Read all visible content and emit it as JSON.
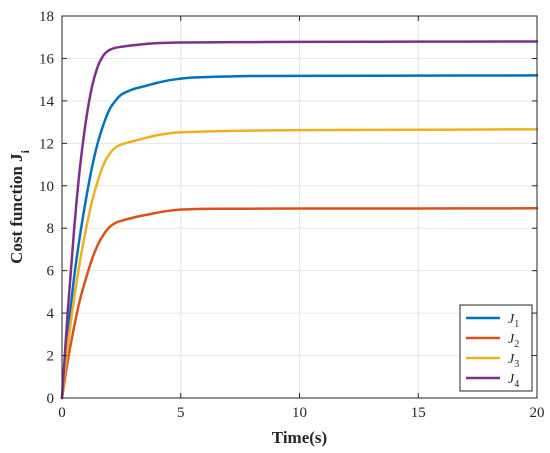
{
  "chart_data": {
    "type": "line",
    "title": "",
    "xlabel": "Time(s)",
    "ylabel": "Cost function J",
    "ylabel_sub": "i",
    "xlim": [
      0,
      20
    ],
    "ylim": [
      0,
      18
    ],
    "xticks": [
      0,
      5,
      10,
      15,
      20
    ],
    "yticks": [
      0,
      2,
      4,
      6,
      8,
      10,
      12,
      14,
      16,
      18
    ],
    "grid": true,
    "legend_position": "bottom-right",
    "series": [
      {
        "name": "J",
        "sub": "1",
        "color": "#0072BD",
        "x": [
          0,
          0.25,
          0.5,
          0.75,
          1,
          1.25,
          1.5,
          1.75,
          2,
          2.25,
          2.5,
          3,
          3.5,
          4,
          4.5,
          5,
          5.5,
          6,
          7,
          8,
          10,
          15,
          20
        ],
        "y": [
          0,
          3.0,
          5.6,
          7.6,
          9.3,
          10.8,
          12.0,
          12.9,
          13.6,
          14.0,
          14.3,
          14.55,
          14.7,
          14.85,
          14.97,
          15.05,
          15.1,
          15.12,
          15.15,
          15.17,
          15.18,
          15.19,
          15.2
        ]
      },
      {
        "name": "J",
        "sub": "2",
        "color": "#D95319",
        "x": [
          0,
          0.25,
          0.5,
          0.75,
          1,
          1.25,
          1.5,
          1.75,
          2,
          2.25,
          2.5,
          3,
          3.5,
          4,
          4.5,
          5,
          5.5,
          6,
          7,
          8,
          10,
          15,
          20
        ],
        "y": [
          0,
          1.8,
          3.3,
          4.6,
          5.6,
          6.5,
          7.2,
          7.7,
          8.05,
          8.25,
          8.35,
          8.5,
          8.62,
          8.73,
          8.82,
          8.88,
          8.9,
          8.91,
          8.92,
          8.92,
          8.93,
          8.93,
          8.94
        ]
      },
      {
        "name": "J",
        "sub": "3",
        "color": "#EDB120",
        "x": [
          0,
          0.25,
          0.5,
          0.75,
          1,
          1.25,
          1.5,
          1.75,
          2,
          2.25,
          2.5,
          3,
          3.5,
          4,
          4.5,
          5,
          5.5,
          6,
          7,
          8,
          10,
          15,
          20
        ],
        "y": [
          0,
          2.5,
          4.6,
          6.4,
          7.9,
          9.2,
          10.2,
          11.0,
          11.5,
          11.8,
          11.95,
          12.1,
          12.25,
          12.38,
          12.47,
          12.52,
          12.54,
          12.56,
          12.58,
          12.6,
          12.62,
          12.64,
          12.66
        ]
      },
      {
        "name": "J",
        "sub": "4",
        "color": "#7E2F8E",
        "x": [
          0,
          0.25,
          0.5,
          0.75,
          1,
          1.25,
          1.5,
          1.75,
          2,
          2.25,
          2.5,
          3,
          3.5,
          4,
          4.5,
          5,
          6,
          8,
          10,
          15,
          20
        ],
        "y": [
          0,
          4.2,
          7.8,
          10.8,
          13.0,
          14.6,
          15.6,
          16.15,
          16.4,
          16.5,
          16.55,
          16.62,
          16.68,
          16.72,
          16.74,
          16.75,
          16.76,
          16.77,
          16.78,
          16.79,
          16.8
        ]
      }
    ]
  }
}
